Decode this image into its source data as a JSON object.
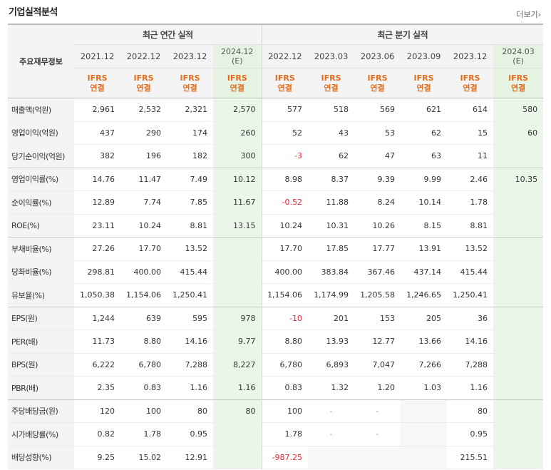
{
  "title": "기업실적분석",
  "more_label": "더보기",
  "more_icon": "chevron-right-icon",
  "header": {
    "row_label": "주요재무정보",
    "annual_group": "최근 연간 실적",
    "quarter_group": "최근 분기 실적",
    "annual_periods": [
      "2021.12",
      "2022.12",
      "2023.12",
      "2024.12"
    ],
    "annual_estimate_marker": "(E)",
    "quarter_periods": [
      "2022.12",
      "2023.03",
      "2023.06",
      "2023.09",
      "2023.12",
      "2024.03"
    ],
    "quarter_estimate_marker": "(E)",
    "ifrs": "IFRS",
    "consolidated": "연결"
  },
  "rows": [
    {
      "label": "매출액(억원)",
      "annual": [
        "2,961",
        "2,532",
        "2,321",
        "2,570"
      ],
      "quarter": [
        "577",
        "518",
        "569",
        "621",
        "614",
        "580"
      ]
    },
    {
      "label": "영업이익(억원)",
      "annual": [
        "437",
        "290",
        "174",
        "260"
      ],
      "quarter": [
        "52",
        "43",
        "53",
        "62",
        "15",
        "60"
      ]
    },
    {
      "label": "당기순이익(억원)",
      "annual": [
        "382",
        "196",
        "182",
        "300"
      ],
      "quarter": [
        "-3",
        "62",
        "47",
        "63",
        "11",
        ""
      ]
    },
    {
      "label": "영업이익률(%)",
      "annual": [
        "14.76",
        "11.47",
        "7.49",
        "10.12"
      ],
      "quarter": [
        "8.98",
        "8.37",
        "9.39",
        "9.99",
        "2.46",
        "10.35"
      ]
    },
    {
      "label": "순이익률(%)",
      "annual": [
        "12.89",
        "7.74",
        "7.85",
        "11.67"
      ],
      "quarter": [
        "-0.52",
        "11.88",
        "8.24",
        "10.14",
        "1.78",
        ""
      ]
    },
    {
      "label": "ROE(%)",
      "annual": [
        "23.11",
        "10.24",
        "8.81",
        "13.15"
      ],
      "quarter": [
        "10.24",
        "10.31",
        "10.26",
        "8.15",
        "8.81",
        ""
      ]
    },
    {
      "label": "부채비율(%)",
      "annual": [
        "27.26",
        "17.70",
        "13.52",
        ""
      ],
      "quarter": [
        "17.70",
        "17.85",
        "17.77",
        "13.91",
        "13.52",
        ""
      ]
    },
    {
      "label": "당좌비율(%)",
      "annual": [
        "298.81",
        "400.00",
        "415.44",
        ""
      ],
      "quarter": [
        "400.00",
        "383.84",
        "367.46",
        "437.14",
        "415.44",
        ""
      ]
    },
    {
      "label": "유보율(%)",
      "annual": [
        "1,050.38",
        "1,154.06",
        "1,250.41",
        ""
      ],
      "quarter": [
        "1,154.06",
        "1,174.99",
        "1,205.58",
        "1,246.65",
        "1,250.41",
        ""
      ]
    },
    {
      "label": "EPS(원)",
      "annual": [
        "1,244",
        "639",
        "595",
        "978"
      ],
      "quarter": [
        "-10",
        "201",
        "153",
        "205",
        "36",
        ""
      ]
    },
    {
      "label": "PER(배)",
      "annual": [
        "11.73",
        "8.80",
        "14.16",
        "9.77"
      ],
      "quarter": [
        "8.80",
        "13.93",
        "12.77",
        "13.66",
        "14.16",
        ""
      ]
    },
    {
      "label": "BPS(원)",
      "annual": [
        "6,222",
        "6,780",
        "7,288",
        "8,227"
      ],
      "quarter": [
        "6,780",
        "6,893",
        "7,047",
        "7,266",
        "7,288",
        ""
      ]
    },
    {
      "label": "PBR(배)",
      "annual": [
        "2.35",
        "0.83",
        "1.16",
        "1.16"
      ],
      "quarter": [
        "0.83",
        "1.32",
        "1.20",
        "1.03",
        "1.16",
        ""
      ]
    },
    {
      "label": "주당배당금(원)",
      "annual": [
        "120",
        "100",
        "80",
        "80"
      ],
      "quarter": [
        "100",
        "-",
        "-",
        "",
        "80",
        ""
      ]
    },
    {
      "label": "시가배당률(%)",
      "annual": [
        "0.82",
        "1.78",
        "0.95",
        ""
      ],
      "quarter": [
        "1.78",
        "-",
        "-",
        "",
        "0.95",
        ""
      ]
    },
    {
      "label": "배당성향(%)",
      "annual": [
        "9.25",
        "15.02",
        "12.91",
        ""
      ],
      "quarter": [
        "-987.25",
        "",
        "",
        "",
        "215.51",
        ""
      ]
    }
  ],
  "colors": {
    "ifrs": "#e46b1a",
    "negative": "#e3262f",
    "estimate_bg": "#eaf7e8"
  }
}
